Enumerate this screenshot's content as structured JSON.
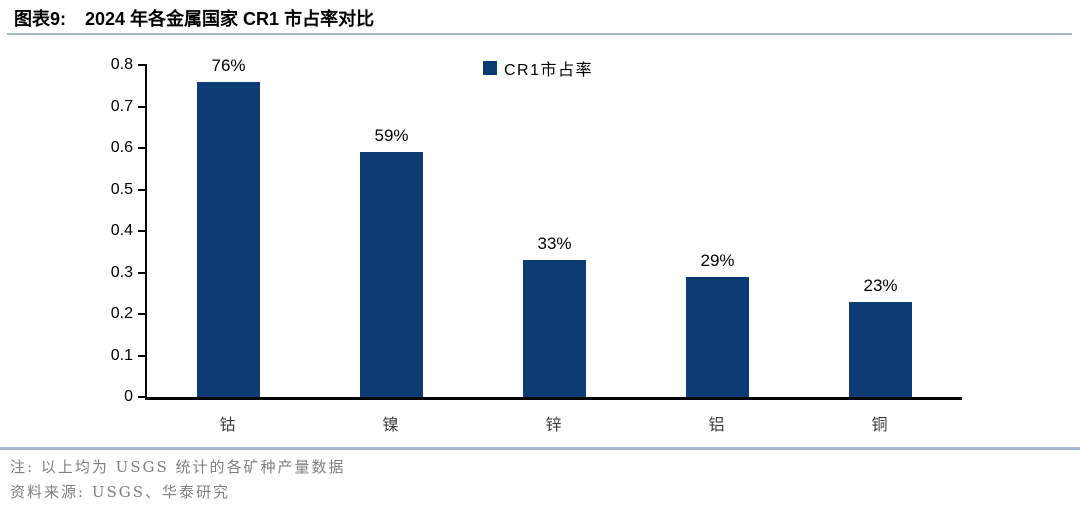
{
  "header": {
    "figure_label": "图表9:",
    "title": "2024 年各金属国家 CR1 市占率对比"
  },
  "chart_data": {
    "type": "bar",
    "title": "2024 年各金属国家 CR1 市占率对比",
    "legend": "CR1市占率",
    "legend_position": "top-center",
    "categories": [
      "钴",
      "镍",
      "锌",
      "铝",
      "铜"
    ],
    "values": [
      0.76,
      0.59,
      0.33,
      0.29,
      0.23
    ],
    "value_labels": [
      "76%",
      "59%",
      "33%",
      "29%",
      "23%"
    ],
    "xlabel": "",
    "ylabel": "",
    "ylim": [
      0,
      0.8
    ],
    "y_ticks": [
      "0.8",
      "0.7",
      "0.6",
      "0.5",
      "0.4",
      "0.3",
      "0.2",
      "0.1",
      "0"
    ],
    "grid": false
  },
  "footer": {
    "note": "注: 以上均为 USGS 统计的各矿种产量数据",
    "source": "资料来源: USGS、华泰研究"
  },
  "colors": {
    "bar": "#0d3c74",
    "divider": "#a6b9d2",
    "note_text": "#7f7f7f"
  }
}
